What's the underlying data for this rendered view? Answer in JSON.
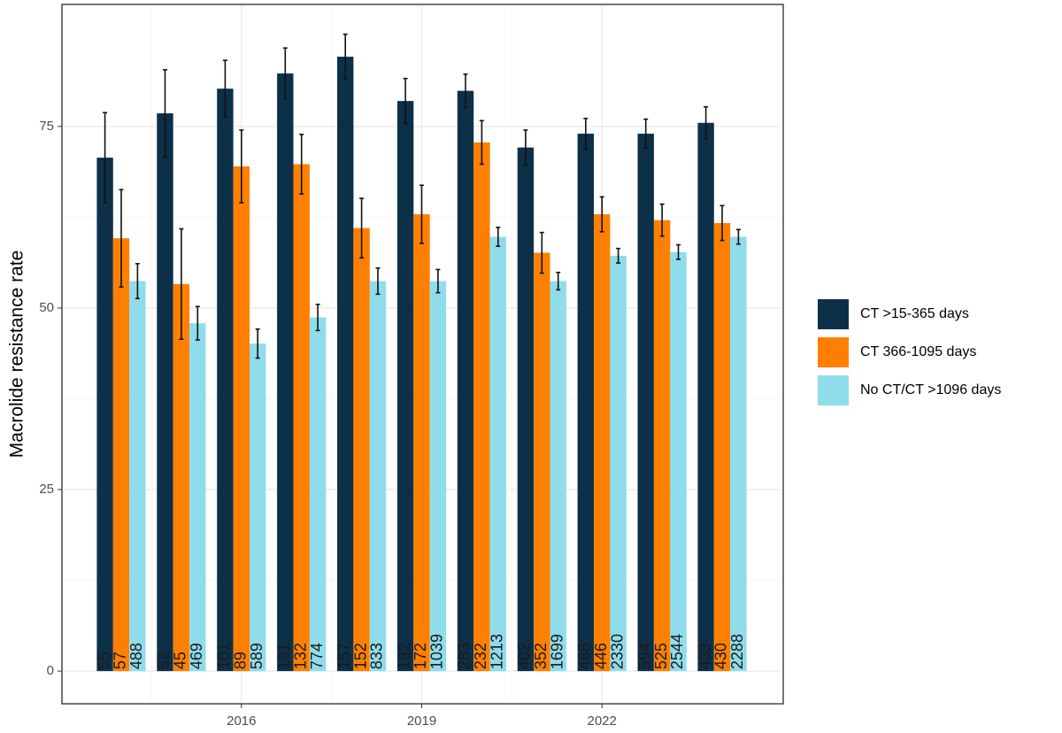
{
  "chart_data": {
    "type": "bar",
    "y_label": "Macrolide resistance rate",
    "categories": [
      null,
      null,
      "2016",
      null,
      null,
      "2019",
      null,
      null,
      "2022",
      null,
      null
    ],
    "series": [
      {
        "name": "CT >15-365 days",
        "color": "#0d3049",
        "values": [
          70.7,
          76.8,
          80.2,
          82.3,
          84.6,
          78.5,
          79.9,
          72.1,
          74.0,
          74.0,
          75.5
        ],
        "errors": [
          6.2,
          6.0,
          3.9,
          3.5,
          3.1,
          3.1,
          2.3,
          2.4,
          2.1,
          2.0,
          2.2
        ],
        "n": [
          55,
          52,
          101,
          131,
          157,
          182,
          283,
          402,
          488,
          594,
          433
        ]
      },
      {
        "name": "CT 366-1095 days",
        "color": "#ff8000",
        "values": [
          59.6,
          53.3,
          69.5,
          69.8,
          61.0,
          62.9,
          72.8,
          57.6,
          62.9,
          62.1,
          61.7
        ],
        "errors": [
          6.7,
          7.6,
          5.0,
          4.1,
          4.1,
          4.0,
          3.0,
          2.8,
          2.4,
          2.2,
          2.4
        ],
        "n": [
          57,
          45,
          89,
          132,
          152,
          172,
          232,
          352,
          446,
          525,
          430
        ]
      },
      {
        "name": "No CT/CT >1096 days",
        "color": "#8fdcec",
        "values": [
          53.7,
          47.9,
          45.1,
          48.7,
          53.7,
          53.7,
          59.8,
          53.7,
          57.2,
          57.7,
          59.8
        ],
        "errors": [
          2.4,
          2.3,
          2.0,
          1.8,
          1.8,
          1.6,
          1.3,
          1.2,
          1.0,
          1.0,
          1.0
        ],
        "n": [
          488,
          469,
          589,
          774,
          833,
          1039,
          1213,
          1699,
          2330,
          2544,
          2288
        ]
      }
    ],
    "ylim": [
      -4.5,
      91.8
    ],
    "yticks": [
      0,
      25,
      50,
      75
    ],
    "grid": true,
    "legend": "right"
  }
}
